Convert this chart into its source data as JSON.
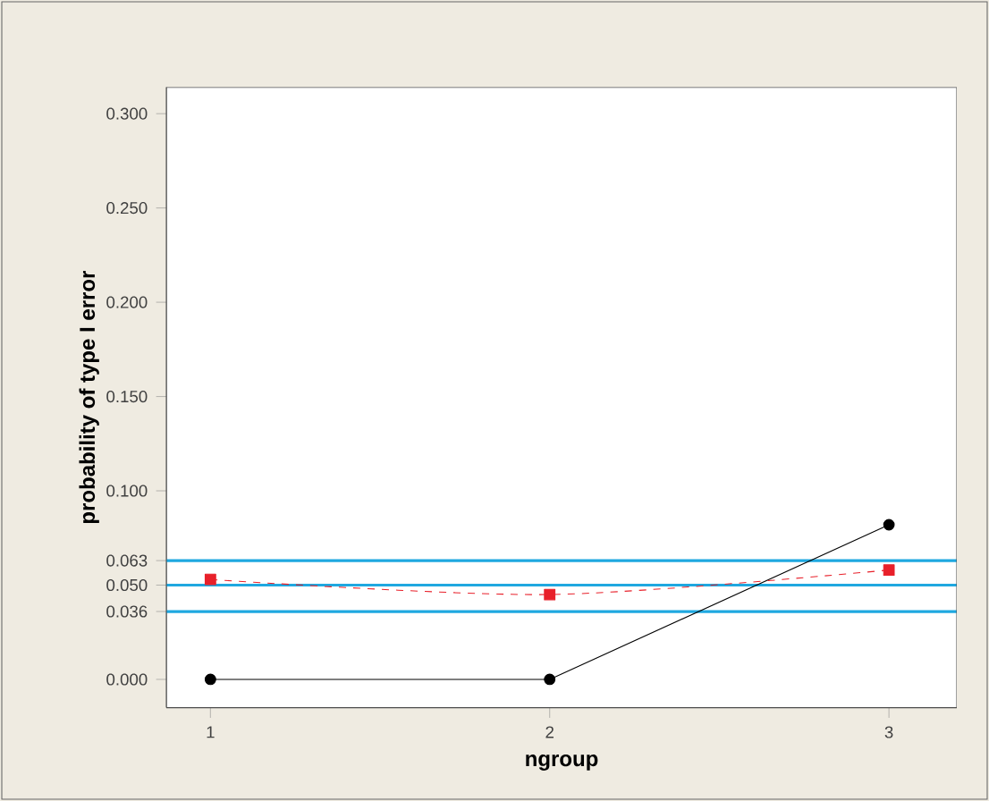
{
  "chart_data": {
    "type": "line",
    "xlabel": "ngroup",
    "ylabel": "probability of type I error",
    "x": [
      1,
      2,
      3
    ],
    "series": [
      {
        "color": "#000000",
        "values": [
          0.0,
          0.0,
          0.082
        ],
        "marker": "circle",
        "line_style": "solid"
      },
      {
        "color": "#e8202a",
        "values": [
          0.053,
          0.045,
          0.058
        ],
        "marker": "square",
        "line_style": "dashed"
      }
    ],
    "xlim": [
      0.87,
      3.2
    ],
    "ylim": [
      -0.015,
      0.314
    ],
    "xticks": [
      1,
      2,
      3
    ],
    "yticks": [
      {
        "value": 0,
        "label": "0.000"
      },
      {
        "value": 0.036,
        "label": "0.036"
      },
      {
        "value": 0.05,
        "label": "0.050"
      },
      {
        "value": 0.063,
        "label": "0.063"
      },
      {
        "value": 0.1,
        "label": "0.100"
      },
      {
        "value": 0.15,
        "label": "0.150"
      },
      {
        "value": 0.2,
        "label": "0.200"
      },
      {
        "value": 0.25,
        "label": "0.250"
      },
      {
        "value": 0.3,
        "label": "0.300"
      }
    ],
    "ref_lines": [
      {
        "axis": "y",
        "value": 0.036,
        "color": "#1fa8e0"
      },
      {
        "axis": "y",
        "value": 0.05,
        "color": "#1fa8e0"
      },
      {
        "axis": "y",
        "value": 0.063,
        "color": "#1fa8e0"
      }
    ],
    "grid": false
  }
}
